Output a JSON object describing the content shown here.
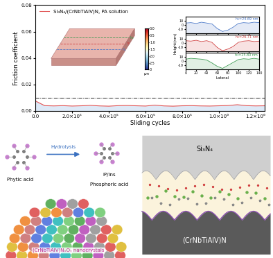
{
  "chart_data": [
    {
      "type": "line",
      "x_label": "Sliding cycles",
      "y_label": "Friction coefficient",
      "xlim": [
        0,
        1250000
      ],
      "ylim": [
        0,
        0.08
      ],
      "xticks": [
        {
          "value": 0,
          "label": "0.0"
        },
        {
          "value": 200000,
          "label": "2.0×10⁵"
        },
        {
          "value": 400000,
          "label": "4.0×10⁵"
        },
        {
          "value": 600000,
          "label": "6.0×10⁵"
        },
        {
          "value": 800000,
          "label": "8.0×10⁵"
        },
        {
          "value": 1000000,
          "label": "1.0×10⁶"
        },
        {
          "value": 1200000,
          "label": "1.2×10⁶"
        }
      ],
      "yticks": [
        {
          "value": 0,
          "label": "0.00"
        },
        {
          "value": 0.02,
          "label": "0.02"
        },
        {
          "value": 0.04,
          "label": "0.04"
        },
        {
          "value": 0.06,
          "label": "0.06"
        },
        {
          "value": 0.08,
          "label": "0.08"
        }
      ],
      "legend": "upper left",
      "reference_line": 0.01,
      "x": [
        0,
        50000,
        100000,
        150000,
        200000,
        250000,
        300000,
        350000,
        400000,
        450000,
        500000,
        550000,
        600000,
        650000,
        700000,
        750000,
        800000,
        850000,
        900000,
        950000,
        1000000,
        1050000,
        1100000,
        1150000,
        1200000,
        1250000
      ],
      "series": [
        {
          "name": "Si₃N₄/(CrNbTiAlV)N, PA solution",
          "color": "#e05050",
          "values": [
            0.0075,
            0.004,
            0.0038,
            0.004,
            0.0037,
            0.0039,
            0.0042,
            0.0038,
            0.0036,
            0.004,
            0.0041,
            0.0039,
            0.0037,
            0.0044,
            0.0038,
            0.0036,
            0.0039,
            0.004,
            0.0038,
            0.0037,
            0.0039,
            0.0041,
            0.0047,
            0.004,
            0.0038,
            0.0039
          ]
        }
      ]
    },
    {
      "type": "line",
      "x": [
        0,
        10,
        20,
        30,
        40,
        50,
        60,
        70,
        80,
        90,
        100,
        110,
        120,
        130,
        140
      ],
      "values": [
        5,
        6,
        4,
        7,
        5,
        3,
        -8,
        -15,
        -12,
        -5,
        4,
        6,
        5,
        7,
        6
      ],
      "color": "#4a78c8",
      "xlim": [
        0,
        140
      ],
      "ylim": [
        -20,
        20
      ],
      "xticks": [
        0,
        20,
        40,
        60,
        80,
        100,
        120,
        140
      ],
      "yticks": [
        -10,
        0,
        10
      ],
      "annotation": "h₁=24.69 nm",
      "tick_labels": "y"
    },
    {
      "type": "line",
      "x": [
        0,
        10,
        20,
        30,
        40,
        50,
        60,
        70,
        80,
        90,
        100,
        110,
        120,
        130,
        140
      ],
      "values": [
        6,
        5,
        7,
        4,
        6,
        2,
        -10,
        -18,
        -14,
        -8,
        2,
        5,
        6,
        4,
        5
      ],
      "color": "#d04040",
      "xlim": [
        0,
        140
      ],
      "ylim": [
        -20,
        20
      ],
      "xticks": [
        0,
        20,
        40,
        60,
        80,
        100,
        120,
        140
      ],
      "yticks": [
        -10,
        0,
        10
      ],
      "annotation": "h₂=26.71 nm",
      "y_label": "Height(nm)",
      "tick_labels": "y"
    },
    {
      "type": "line",
      "x": [
        0,
        10,
        20,
        30,
        40,
        50,
        60,
        70,
        80,
        90,
        100,
        110,
        120,
        130,
        140
      ],
      "values": [
        5,
        7,
        6,
        5,
        3,
        -4,
        -12,
        -17,
        -10,
        -3,
        4,
        6,
        5,
        7,
        5
      ],
      "color": "#3a9a50",
      "xlim": [
        0,
        140
      ],
      "ylim": [
        -20,
        20
      ],
      "xticks": [
        0,
        20,
        40,
        60,
        80,
        100,
        120,
        140
      ],
      "yticks": [
        -10,
        0,
        10
      ],
      "annotation": "h₃=25.80 nm",
      "x_label": "Lateral"
    }
  ],
  "diagram": {
    "surface_map": {
      "profile_labels": [
        "h₁",
        "h₂",
        "h₃"
      ],
      "colorbar_range": [
        0,
        3
      ],
      "colorbar_ticks": [
        {
          "value": 0,
          "label": "0.0"
        },
        {
          "value": 0.5,
          "label": "0.5"
        },
        {
          "value": 1,
          "label": "1.0"
        },
        {
          "value": 1.5,
          "label": "1.5"
        },
        {
          "value": 2,
          "label": "2.0"
        },
        {
          "value": 2.5,
          "label": "2.5"
        },
        {
          "value": 3,
          "label": "3"
        }
      ],
      "colorbar_label": "μm"
    },
    "molecules": {
      "reactant": "Phytic acid",
      "process": "Hydrolysis",
      "products": [
        "IP/Ins",
        "Phosphoric acid"
      ]
    },
    "nanocrystals": "(CrNbTiAlV)NₓOᵧ nanocrystals",
    "interface": {
      "top": "Si₃N₄",
      "bottom": "(CrNbTiAlV)N"
    }
  }
}
